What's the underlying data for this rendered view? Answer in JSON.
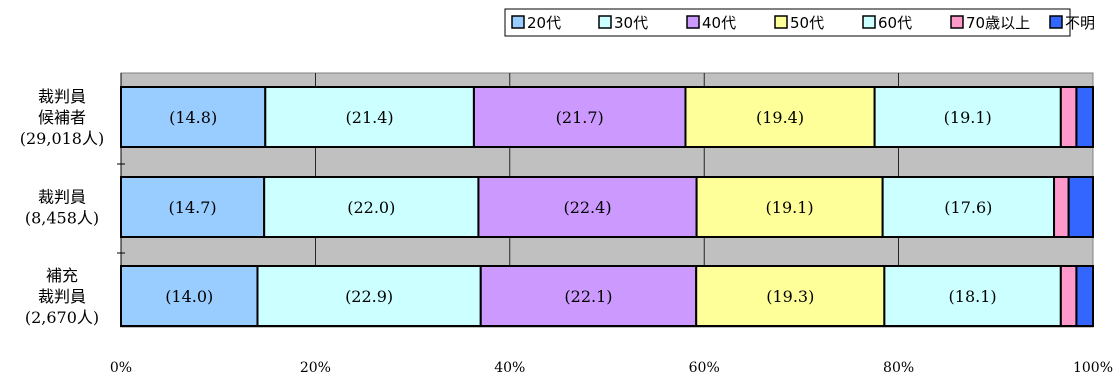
{
  "chart_data": {
    "type": "bar",
    "orientation": "horizontal",
    "stacked": "percent",
    "title": "",
    "xlabel": "",
    "ylabel": "",
    "xlim": [
      0,
      100
    ],
    "x_ticks": [
      "0%",
      "20%",
      "40%",
      "60%",
      "80%",
      "100%"
    ],
    "grid": true,
    "legend_position": "top-right",
    "categories": [
      [
        "裁判員",
        "候補者",
        "(29,018人)"
      ],
      [
        "裁判員",
        "(8,458人)"
      ],
      [
        "補充",
        "裁判員",
        "(2,670人)"
      ]
    ],
    "series": [
      {
        "name": "20代",
        "color": "#99ccff",
        "values": [
          14.8,
          14.7,
          14.0
        ],
        "labels": [
          "(14.8)",
          "(14.7)",
          "(14.0)"
        ]
      },
      {
        "name": "30代",
        "color": "#ccffff",
        "values": [
          21.4,
          22.0,
          22.9
        ],
        "labels": [
          "(21.4)",
          "(22.0)",
          "(22.9)"
        ]
      },
      {
        "name": "40代",
        "color": "#cc99ff",
        "values": [
          21.7,
          22.4,
          22.1
        ],
        "labels": [
          "(21.7)",
          "(22.4)",
          "(22.1)"
        ]
      },
      {
        "name": "50代",
        "color": "#ffff99",
        "values": [
          19.4,
          19.1,
          19.3
        ],
        "labels": [
          "(19.4)",
          "(19.1)",
          "(19.3)"
        ]
      },
      {
        "name": "60代",
        "color": "#ccffff",
        "values": [
          19.1,
          17.6,
          18.1
        ],
        "labels": [
          "(19.1)",
          "(17.6)",
          "(18.1)"
        ]
      },
      {
        "name": "70歳以上",
        "color": "#ff99cc",
        "values": [
          1.6,
          1.5,
          1.6
        ],
        "labels": [
          "",
          "",
          ""
        ]
      },
      {
        "name": "不明",
        "color": "#3366ff",
        "values": [
          1.7,
          2.5,
          1.7
        ],
        "labels": [
          "",
          "",
          ""
        ]
      }
    ],
    "plot_background": "#c0c0c0"
  }
}
